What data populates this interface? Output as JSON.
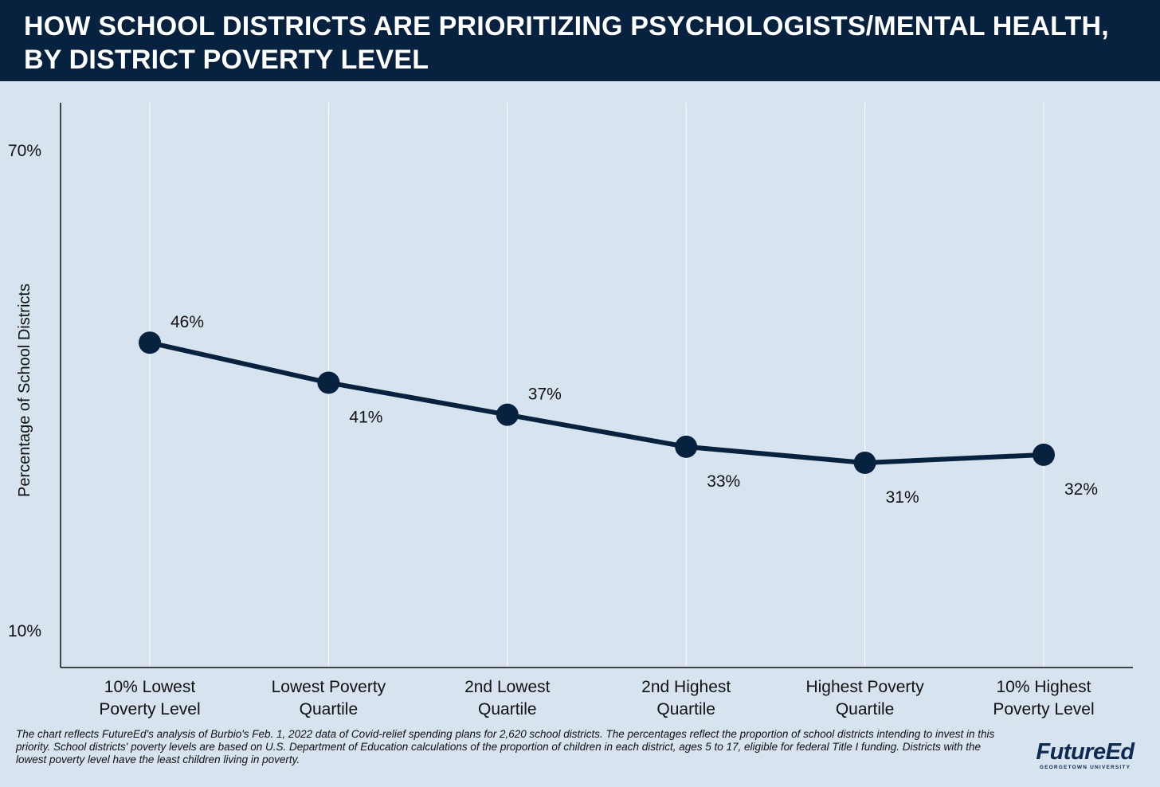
{
  "header": {
    "title_line1": "HOW SCHOOL DISTRICTS ARE PRIORITIZING PSYCHOLOGISTS/MENTAL HEALTH,",
    "title_line2": "BY DISTRICT POVERTY LEVEL"
  },
  "colors": {
    "header_bg": "#06223f",
    "page_bg": "#d7e3ee",
    "line": "#06223f",
    "gridline": "#ffffff"
  },
  "chart_data": {
    "type": "line",
    "title": "HOW SCHOOL DISTRICTS ARE PRIORITIZING PSYCHOLOGISTS/MENTAL HEALTH, BY DISTRICT POVERTY LEVEL",
    "xlabel": "",
    "ylabel": "Percentage of School Districts",
    "categories": [
      [
        "10% Lowest",
        "Poverty Level"
      ],
      [
        "Lowest Poverty",
        "Quartile"
      ],
      [
        "2nd Lowest",
        "Quartile"
      ],
      [
        "2nd Highest",
        "Quartile"
      ],
      [
        "Highest Poverty",
        "Quartile"
      ],
      [
        "10% Highest",
        "Poverty Level"
      ]
    ],
    "values": [
      46,
      41,
      37,
      33,
      31,
      32
    ],
    "data_labels": [
      "46%",
      "41%",
      "37%",
      "33%",
      "31%",
      "32%"
    ],
    "label_positions": [
      "above",
      "below",
      "above",
      "below",
      "below",
      "below"
    ],
    "ylim": [
      10,
      70
    ],
    "y_ticks": [
      {
        "value": 70,
        "label": "70%"
      },
      {
        "value": 10,
        "label": "10%"
      }
    ],
    "grid": "vertical",
    "legend": "none"
  },
  "footnote": "The chart reflects FutureEd's analysis of Burbio's Feb. 1, 2022 data of Covid-relief spending plans for 2,620 school districts. The percentages reflect the proportion of school districts intending to invest in this priority. School districts' poverty levels are based on U.S. Department of Education calculations of the proportion of children in each district, ages 5 to 17, eligible for federal Title I funding. Districts with the lowest poverty level have the least children living in poverty.",
  "logo": {
    "wordmark": "FutureEd",
    "subtitle": "GEORGETOWN UNIVERSITY"
  }
}
